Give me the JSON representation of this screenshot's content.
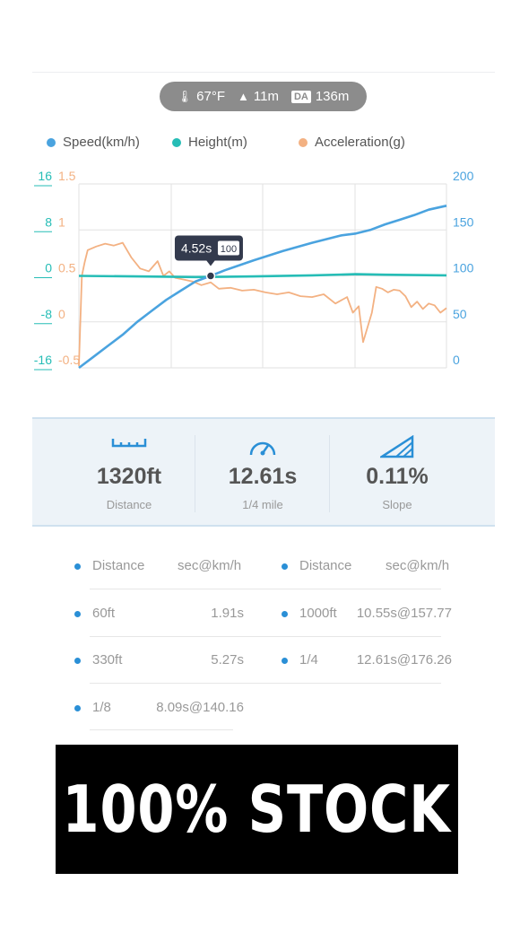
{
  "conditions": {
    "temperature": "67°F",
    "altitude": "11m",
    "density_altitude_badge": "DA",
    "density_altitude": "136m"
  },
  "legend": [
    {
      "label": "Speed(km/h)",
      "color": "#4aa3df"
    },
    {
      "label": "Height(m)",
      "color": "#26bdb6"
    },
    {
      "label": "Acceleration(g)",
      "color": "#f3b182"
    }
  ],
  "tooltip": {
    "time": "4.52s",
    "value": "100"
  },
  "chart_data": {
    "type": "line",
    "x_range_s": [
      0,
      12.61
    ],
    "axes": {
      "height_left": {
        "ticks": [
          "16",
          "8",
          "0",
          "-8",
          "-16"
        ],
        "range": [
          -16,
          16
        ],
        "color": "#26bdb6"
      },
      "acceleration_left": {
        "ticks": [
          "1.5",
          "1",
          "0.5",
          "0",
          "-0.5"
        ],
        "range": [
          -0.5,
          1.5
        ],
        "color": "#f3b182"
      },
      "speed_right": {
        "ticks": [
          "200",
          "150",
          "100",
          "50",
          "0"
        ],
        "range": [
          0,
          200
        ],
        "color": "#4aa3df"
      }
    },
    "grid": true,
    "series": [
      {
        "name": "Speed(km/h)",
        "color": "#4aa3df",
        "x": [
          0,
          0.5,
          1,
          1.5,
          2,
          2.5,
          3,
          3.5,
          4,
          4.52,
          5,
          6,
          7,
          8,
          9,
          9.5,
          10,
          10.5,
          11,
          11.5,
          12,
          12.61
        ],
        "values": [
          0,
          12,
          24,
          36,
          50,
          62,
          74,
          84,
          94,
          100,
          106,
          117,
          127,
          136,
          144,
          146,
          150,
          156,
          161,
          166,
          172,
          176.26
        ]
      },
      {
        "name": "Height(m)",
        "color": "#26bdb6",
        "x": [
          0,
          2,
          4,
          6,
          8,
          9.5,
          10.5,
          12.61
        ],
        "values": [
          0,
          -0.1,
          -0.2,
          -0.1,
          0.1,
          0.3,
          0.2,
          0.1
        ]
      },
      {
        "name": "Acceleration(g)",
        "color": "#f3b182",
        "x": [
          0,
          0.1,
          0.2,
          0.3,
          0.6,
          0.9,
          1.2,
          1.5,
          1.8,
          2.1,
          2.4,
          2.7,
          2.9,
          3.1,
          3.3,
          3.6,
          3.9,
          4.2,
          4.52,
          4.8,
          5.2,
          5.6,
          6.0,
          6.4,
          6.8,
          7.2,
          7.6,
          8.0,
          8.4,
          8.8,
          9.2,
          9.4,
          9.6,
          9.75,
          9.9,
          10.05,
          10.2,
          10.4,
          10.6,
          10.8,
          11.0,
          11.2,
          11.4,
          11.6,
          11.8,
          12.0,
          12.2,
          12.4,
          12.61
        ],
        "values": [
          -0.48,
          0.5,
          0.65,
          0.78,
          0.82,
          0.85,
          0.83,
          0.86,
          0.7,
          0.58,
          0.55,
          0.66,
          0.5,
          0.55,
          0.48,
          0.46,
          0.44,
          0.4,
          0.43,
          0.36,
          0.37,
          0.34,
          0.35,
          0.32,
          0.3,
          0.32,
          0.28,
          0.27,
          0.3,
          0.2,
          0.27,
          0.1,
          0.17,
          -0.22,
          -0.06,
          0.1,
          0.38,
          0.36,
          0.32,
          0.35,
          0.34,
          0.28,
          0.16,
          0.22,
          0.14,
          0.2,
          0.18,
          0.1,
          0.15
        ]
      }
    ]
  },
  "stats": [
    {
      "value": "1320ft",
      "label": "Distance",
      "icon": "ruler-icon"
    },
    {
      "value": "12.61s",
      "label": "1/4 mile",
      "icon": "speedometer-icon"
    },
    {
      "value": "0.11%",
      "label": "Slope",
      "icon": "slope-icon"
    }
  ],
  "results": {
    "header": {
      "col1": "Distance",
      "col2": "sec@km/h"
    },
    "left": [
      {
        "distance": "60ft",
        "result": "1.91s"
      },
      {
        "distance": "330ft",
        "result": "5.27s"
      },
      {
        "distance": "1/8",
        "result": "8.09s@140.16"
      }
    ],
    "right": [
      {
        "distance": "1000ft",
        "result": "10.55s@157.77"
      },
      {
        "distance": "1/4",
        "result": "12.61s@176.26"
      }
    ]
  },
  "banner": {
    "text": "100% STOCK"
  }
}
